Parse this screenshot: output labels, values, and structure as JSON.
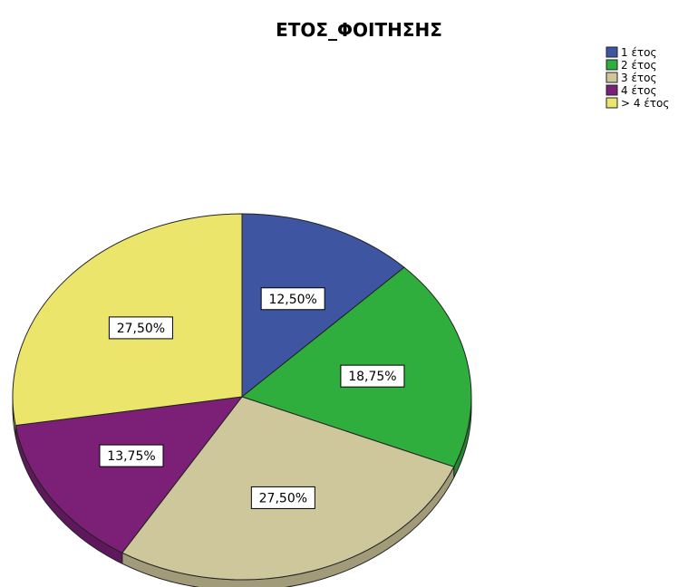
{
  "chart_data": {
    "type": "pie",
    "title": "ΕΤΟΣ_ΦΟΙΤΗΣΗΣ",
    "legend_position": "top-right",
    "start_angle_deg": 90,
    "direction": "clockwise",
    "slices": [
      {
        "name": "1 έτος",
        "value": 12.5,
        "label": "12,50%",
        "color": "#3e55a2"
      },
      {
        "name": "2 έτος",
        "value": 18.75,
        "label": "18,75%",
        "color": "#2fae3d"
      },
      {
        "name": "3 έτος",
        "value": 27.5,
        "label": "27,50%",
        "color": "#cfc79c"
      },
      {
        "name": "4 έτος",
        "value": 13.75,
        "label": "13,75%",
        "color": "#7b1f77"
      },
      {
        "name": "> 4 έτος",
        "value": 27.5,
        "label": "27,50%",
        "color": "#ece56c"
      }
    ]
  }
}
